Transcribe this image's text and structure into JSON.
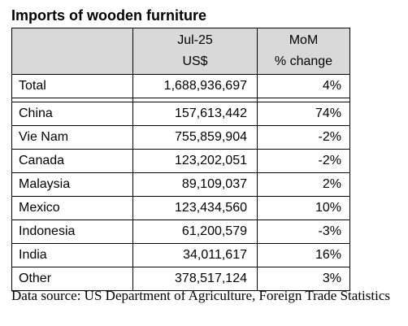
{
  "title": "Imports of wooden furniture",
  "header": {
    "col1": "",
    "col2_line1": "Jul-25",
    "col2_line2": "US$",
    "col3_line1": "MoM",
    "col3_line2": "% change"
  },
  "total": {
    "name": "Total",
    "value": "1,688,936,697",
    "change": "4%"
  },
  "rows": [
    {
      "name": "China",
      "value": "157,613,442",
      "change": "74%"
    },
    {
      "name": "Vie Nam",
      "value": "755,859,904",
      "change": "-2%"
    },
    {
      "name": "Canada",
      "value": "123,202,051",
      "change": "-2%"
    },
    {
      "name": "Malaysia",
      "value": "89,109,037",
      "change": "2%"
    },
    {
      "name": "Mexico",
      "value": "123,434,560",
      "change": "10%"
    },
    {
      "name": "Indonesia",
      "value": "61,200,579",
      "change": "-3%"
    },
    {
      "name": "India",
      "value": "34,011,617",
      "change": "16%"
    },
    {
      "name": "Other",
      "value": "378,517,124",
      "change": "3%"
    }
  ],
  "source": "Data source: US Department of Agriculture, Foreign Trade Statistics",
  "colors": {
    "header_background": "#d9d9d9",
    "border": "#000000"
  }
}
